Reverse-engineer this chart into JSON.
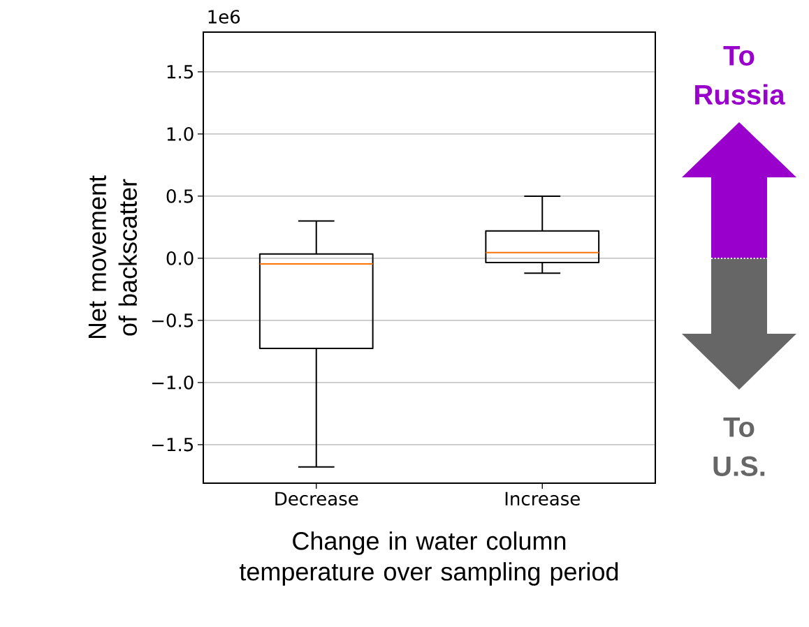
{
  "chart_data": {
    "type": "box",
    "xlabel": "Change in water column temperature over sampling period",
    "ylabel": "Net movement of backscatter",
    "categories": [
      "Decrease",
      "Increase"
    ],
    "boxes": [
      {
        "low": -1.68,
        "q1": -0.725,
        "median": -0.045,
        "q3": 0.035,
        "high": 0.3
      },
      {
        "low": -0.12,
        "q1": -0.035,
        "median": 0.045,
        "q3": 0.22,
        "high": 0.5
      }
    ],
    "ylim": [
      -1.81,
      1.82
    ],
    "yticks": [
      {
        "value": -1.5,
        "label": "−1.5"
      },
      {
        "value": -1.0,
        "label": "−1.0"
      },
      {
        "value": -0.5,
        "label": "−0.5"
      },
      {
        "value": 0.0,
        "label": "0.0"
      },
      {
        "value": 0.5,
        "label": "0.5"
      },
      {
        "value": 1.0,
        "label": "1.0"
      },
      {
        "value": 1.5,
        "label": "1.5"
      }
    ],
    "grid": "y",
    "annotations": [
      "1e6",
      "To Russia",
      "To U.S."
    ]
  }
}
